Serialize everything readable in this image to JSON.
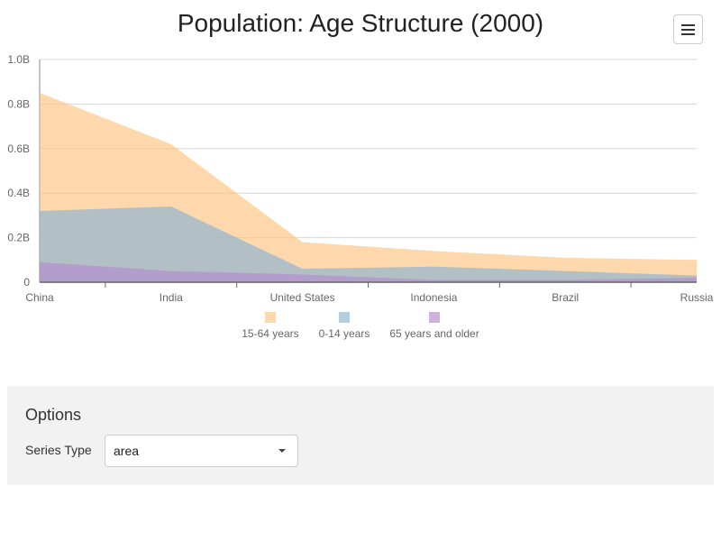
{
  "chart": {
    "title": "Population: Age Structure (2000)",
    "menu_icon": "hamburger-menu-icon"
  },
  "chart_data": {
    "type": "area",
    "title": "Population: Age Structure (2000)",
    "categories": [
      "China",
      "India",
      "United States",
      "Indonesia",
      "Brazil",
      "Russia"
    ],
    "ylim": [
      0,
      1.0
    ],
    "y_unit": "billion",
    "y_ticks": [
      {
        "value": 0,
        "label": "0"
      },
      {
        "value": 0.2,
        "label": "0.2B"
      },
      {
        "value": 0.4,
        "label": "0.4B"
      },
      {
        "value": 0.6,
        "label": "0.6B"
      },
      {
        "value": 0.8,
        "label": "0.8B"
      },
      {
        "value": 1.0,
        "label": "1.0B"
      }
    ],
    "grid": true,
    "legend_position": "bottom",
    "stacked": false,
    "series": [
      {
        "name": "15-64 years",
        "color": "#fbc37f",
        "values": [
          0.85,
          0.62,
          0.18,
          0.14,
          0.11,
          0.1
        ]
      },
      {
        "name": "0-14 years",
        "color": "#8ab4d3",
        "values": [
          0.32,
          0.34,
          0.06,
          0.07,
          0.05,
          0.03
        ]
      },
      {
        "name": "65 years and older",
        "color": "#b38ad1",
        "values": [
          0.09,
          0.05,
          0.035,
          0.01,
          0.01,
          0.02
        ]
      }
    ]
  },
  "options": {
    "title": "Options",
    "series_type_label": "Series Type",
    "series_type_value": "area"
  }
}
